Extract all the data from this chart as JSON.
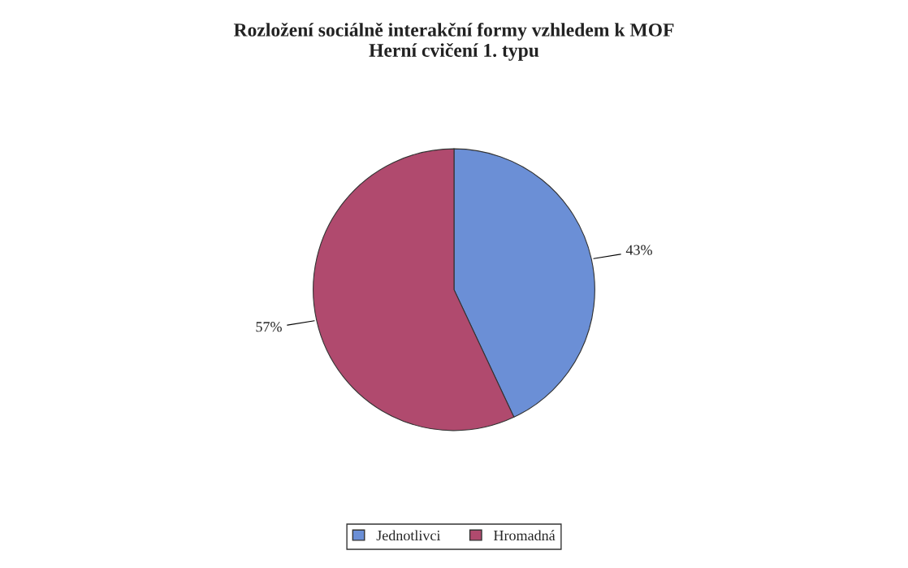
{
  "chart_data": {
    "type": "pie",
    "title": "Rozložení sociálně interakční formy vzhledem k MOF\nHerní cvičení 1. typu",
    "categories": [
      "Jednotlivci",
      "Hromadná"
    ],
    "values": [
      43,
      57
    ],
    "colors": [
      "#6b8fd6",
      "#b04a6e"
    ],
    "value_labels": [
      "43%",
      "57%"
    ],
    "legend": "bottom"
  }
}
